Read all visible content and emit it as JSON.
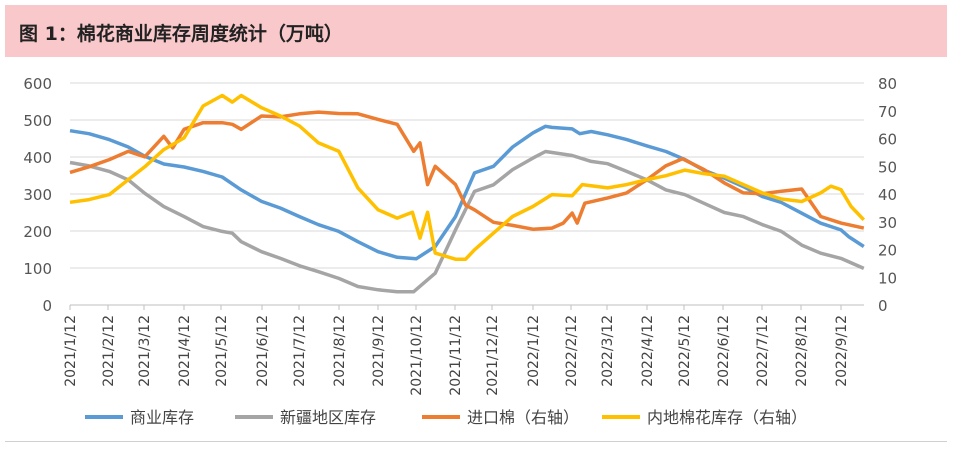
{
  "title": "图 1：棉花商业库存周度统计（万吨）",
  "chart_data": {
    "type": "line",
    "title": "图 1：棉花商业库存周度统计（万吨）",
    "grid": true,
    "legend_position": "bottom",
    "y_left": {
      "range": [
        0,
        600
      ],
      "ticks": [
        "0",
        "100",
        "200",
        "300",
        "400",
        "500",
        "600"
      ]
    },
    "y_right": {
      "range": [
        0,
        80
      ],
      "ticks": [
        "0",
        "10",
        "20",
        "30",
        "40",
        "50",
        "60",
        "70",
        "80"
      ]
    },
    "x_ticks": [
      "2021/1/12",
      "2021/2/12",
      "2021/3/12",
      "2021/4/12",
      "2021/5/12",
      "2021/6/12",
      "2021/7/12",
      "2021/8/12",
      "2021/9/12",
      "2021/10/12",
      "2021/11/12",
      "2021/12/12",
      "2022/1/12",
      "2022/2/12",
      "2022/3/12",
      "2022/4/12",
      "2022/5/12",
      "2022/6/12",
      "2022/7/12",
      "2022/8/12",
      "2022/9/12"
    ],
    "series": [
      {
        "name": "商业库存",
        "axis": "left",
        "color": "#5b9bd5",
        "points": [
          [
            "2021-01-12",
            471
          ],
          [
            "2021-01-27",
            463
          ],
          [
            "2021-02-12",
            447
          ],
          [
            "2021-02-27",
            427
          ],
          [
            "2021-03-12",
            402
          ],
          [
            "2021-03-27",
            381
          ],
          [
            "2021-04-12",
            373
          ],
          [
            "2021-04-27",
            361
          ],
          [
            "2021-05-12",
            346
          ],
          [
            "2021-05-27",
            311
          ],
          [
            "2021-06-12",
            280
          ],
          [
            "2021-06-27",
            262
          ],
          [
            "2021-07-12",
            239
          ],
          [
            "2021-07-27",
            217
          ],
          [
            "2021-08-12",
            199
          ],
          [
            "2021-08-27",
            171
          ],
          [
            "2021-09-12",
            144
          ],
          [
            "2021-09-27",
            129
          ],
          [
            "2021-10-12",
            125
          ],
          [
            "2021-10-27",
            158
          ],
          [
            "2021-11-12",
            239
          ],
          [
            "2021-11-27",
            357
          ],
          [
            "2021-12-12",
            375
          ],
          [
            "2021-12-27",
            427
          ],
          [
            "2022-01-12",
            465
          ],
          [
            "2022-01-22",
            483
          ],
          [
            "2022-01-27",
            480
          ],
          [
            "2022-02-12",
            476
          ],
          [
            "2022-02-18",
            463
          ],
          [
            "2022-02-27",
            469
          ],
          [
            "2022-03-12",
            460
          ],
          [
            "2022-03-27",
            447
          ],
          [
            "2022-04-12",
            430
          ],
          [
            "2022-04-27",
            415
          ],
          [
            "2022-05-12",
            393
          ],
          [
            "2022-05-27",
            364
          ],
          [
            "2022-06-12",
            343
          ],
          [
            "2022-06-27",
            320
          ],
          [
            "2022-07-12",
            293
          ],
          [
            "2022-07-27",
            277
          ],
          [
            "2022-08-12",
            248
          ],
          [
            "2022-08-27",
            221
          ],
          [
            "2022-09-12",
            203
          ],
          [
            "2022-09-18",
            185
          ],
          [
            "2022-09-30",
            158
          ]
        ]
      },
      {
        "name": "新疆地区库存",
        "axis": "left",
        "color": "#a5a5a5",
        "points": [
          [
            "2021-01-12",
            385
          ],
          [
            "2021-01-27",
            376
          ],
          [
            "2021-02-12",
            361
          ],
          [
            "2021-02-27",
            338
          ],
          [
            "2021-03-12",
            302
          ],
          [
            "2021-03-27",
            266
          ],
          [
            "2021-04-12",
            239
          ],
          [
            "2021-04-27",
            212
          ],
          [
            "2021-05-12",
            199
          ],
          [
            "2021-05-20",
            194
          ],
          [
            "2021-05-27",
            171
          ],
          [
            "2021-06-12",
            144
          ],
          [
            "2021-06-27",
            126
          ],
          [
            "2021-07-12",
            106
          ],
          [
            "2021-07-27",
            90
          ],
          [
            "2021-08-12",
            72
          ],
          [
            "2021-08-27",
            50
          ],
          [
            "2021-09-12",
            41
          ],
          [
            "2021-09-27",
            36
          ],
          [
            "2021-10-10",
            36
          ],
          [
            "2021-10-27",
            86
          ],
          [
            "2021-11-12",
            203
          ],
          [
            "2021-11-27",
            307
          ],
          [
            "2021-12-12",
            325
          ],
          [
            "2021-12-27",
            366
          ],
          [
            "2022-01-12",
            397
          ],
          [
            "2022-01-22",
            415
          ],
          [
            "2022-02-12",
            404
          ],
          [
            "2022-02-27",
            388
          ],
          [
            "2022-03-12",
            382
          ],
          [
            "2022-03-27",
            361
          ],
          [
            "2022-04-12",
            338
          ],
          [
            "2022-04-27",
            311
          ],
          [
            "2022-05-12",
            298
          ],
          [
            "2022-05-27",
            275
          ],
          [
            "2022-06-12",
            250
          ],
          [
            "2022-06-27",
            239
          ],
          [
            "2022-07-12",
            217
          ],
          [
            "2022-07-27",
            199
          ],
          [
            "2022-08-12",
            162
          ],
          [
            "2022-08-27",
            140
          ],
          [
            "2022-09-12",
            126
          ],
          [
            "2022-09-30",
            99
          ]
        ]
      },
      {
        "name": "进口棉（右轴）",
        "axis": "right",
        "color": "#ed7d31",
        "points": [
          [
            "2021-01-12",
            47.8
          ],
          [
            "2021-01-27",
            49.8
          ],
          [
            "2021-02-12",
            52.4
          ],
          [
            "2021-02-27",
            55.4
          ],
          [
            "2021-03-12",
            53.4
          ],
          [
            "2021-03-27",
            60.8
          ],
          [
            "2021-04-03",
            56.6
          ],
          [
            "2021-04-12",
            63.3
          ],
          [
            "2021-04-27",
            65.7
          ],
          [
            "2021-05-12",
            65.7
          ],
          [
            "2021-05-20",
            65.1
          ],
          [
            "2021-05-27",
            63.3
          ],
          [
            "2021-06-12",
            68.1
          ],
          [
            "2021-06-27",
            67.8
          ],
          [
            "2021-07-12",
            68.9
          ],
          [
            "2021-07-27",
            69.5
          ],
          [
            "2021-08-12",
            69.0
          ],
          [
            "2021-08-27",
            68.9
          ],
          [
            "2021-09-12",
            66.9
          ],
          [
            "2021-09-27",
            65.1
          ],
          [
            "2021-10-10",
            55.4
          ],
          [
            "2021-10-15",
            58.4
          ],
          [
            "2021-10-21",
            43.4
          ],
          [
            "2021-10-27",
            50
          ],
          [
            "2021-11-12",
            43.4
          ],
          [
            "2021-11-20",
            36
          ],
          [
            "2021-11-27",
            34.3
          ],
          [
            "2021-12-12",
            29.8
          ],
          [
            "2021-12-27",
            28.7
          ],
          [
            "2022-01-12",
            27.3
          ],
          [
            "2022-01-27",
            27.7
          ],
          [
            "2022-02-05",
            29.5
          ],
          [
            "2022-02-12",
            33.1
          ],
          [
            "2022-02-16",
            29.5
          ],
          [
            "2022-02-22",
            36.7
          ],
          [
            "2022-03-12",
            38.6
          ],
          [
            "2022-03-27",
            40.4
          ],
          [
            "2022-04-12",
            45.2
          ],
          [
            "2022-04-27",
            50.2
          ],
          [
            "2022-05-10",
            52.7
          ],
          [
            "2022-05-27",
            48.8
          ],
          [
            "2022-06-12",
            44
          ],
          [
            "2022-06-27",
            40.4
          ],
          [
            "2022-07-12",
            40.1
          ],
          [
            "2022-07-27",
            41
          ],
          [
            "2022-08-12",
            41.8
          ],
          [
            "2022-08-27",
            31.9
          ],
          [
            "2022-09-12",
            29.5
          ],
          [
            "2022-09-30",
            27.7
          ]
        ]
      },
      {
        "name": "内地棉花库存（右轴）",
        "axis": "right",
        "color": "#ffc000",
        "points": [
          [
            "2021-01-12",
            37
          ],
          [
            "2021-01-27",
            38
          ],
          [
            "2021-02-12",
            39.8
          ],
          [
            "2021-02-27",
            45.2
          ],
          [
            "2021-03-12",
            49.8
          ],
          [
            "2021-03-27",
            56
          ],
          [
            "2021-04-12",
            60.2
          ],
          [
            "2021-04-27",
            71.7
          ],
          [
            "2021-05-12",
            75.5
          ],
          [
            "2021-05-20",
            73.1
          ],
          [
            "2021-05-27",
            75.5
          ],
          [
            "2021-06-12",
            71.1
          ],
          [
            "2021-06-27",
            68.1
          ],
          [
            "2021-07-12",
            64.5
          ],
          [
            "2021-07-27",
            58.4
          ],
          [
            "2021-08-12",
            55.4
          ],
          [
            "2021-08-27",
            42.2
          ],
          [
            "2021-09-12",
            34.3
          ],
          [
            "2021-09-27",
            31.3
          ],
          [
            "2021-10-09",
            33.4
          ],
          [
            "2021-10-15",
            24.1
          ],
          [
            "2021-10-21",
            33.4
          ],
          [
            "2021-10-27",
            18.7
          ],
          [
            "2021-11-12",
            16.5
          ],
          [
            "2021-11-20",
            16.5
          ],
          [
            "2021-11-27",
            19.9
          ],
          [
            "2021-12-12",
            25.9
          ],
          [
            "2021-12-27",
            31.9
          ],
          [
            "2022-01-12",
            35.5
          ],
          [
            "2022-01-27",
            39.8
          ],
          [
            "2022-02-12",
            39.4
          ],
          [
            "2022-02-20",
            43.4
          ],
          [
            "2022-03-12",
            42.2
          ],
          [
            "2022-03-27",
            43.4
          ],
          [
            "2022-04-12",
            45.2
          ],
          [
            "2022-04-27",
            46.6
          ],
          [
            "2022-05-12",
            48.6
          ],
          [
            "2022-05-27",
            47.3
          ],
          [
            "2022-06-12",
            46.4
          ],
          [
            "2022-06-27",
            43.4
          ],
          [
            "2022-07-12",
            40.4
          ],
          [
            "2022-07-27",
            38.2
          ],
          [
            "2022-08-12",
            37.3
          ],
          [
            "2022-08-27",
            40.4
          ],
          [
            "2022-09-04",
            42.8
          ],
          [
            "2022-09-12",
            41.6
          ],
          [
            "2022-09-20",
            35.5
          ],
          [
            "2022-09-30",
            30.7
          ]
        ]
      }
    ]
  }
}
